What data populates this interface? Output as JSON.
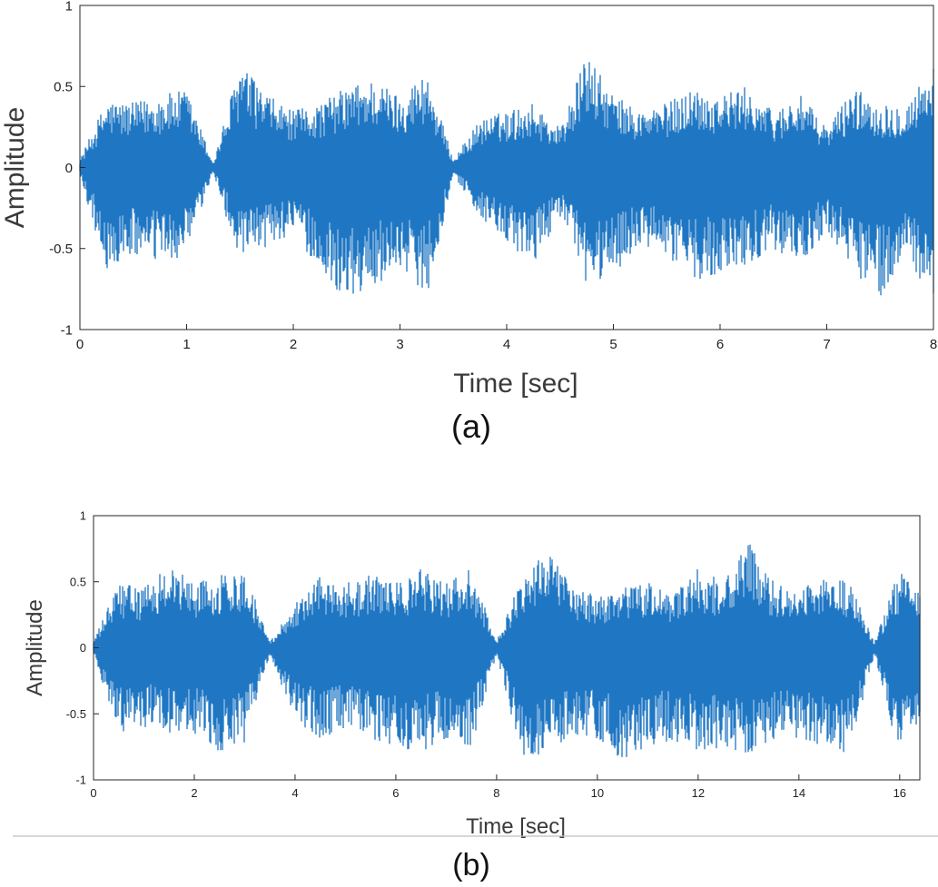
{
  "figure": {
    "panels": [
      {
        "caption": "(a)"
      },
      {
        "caption": "(b)"
      }
    ],
    "colors": {
      "signal": "#1f77c4",
      "axis": "#262626",
      "background": "#ffffff",
      "rule": "#bfbfbf"
    }
  },
  "chart_data": [
    {
      "type": "line",
      "title": "",
      "xlabel": "Time [sec]",
      "ylabel": "Amplitude",
      "xlim": [
        0,
        8
      ],
      "ylim": [
        -1,
        1
      ],
      "xticks": [
        0,
        1,
        2,
        3,
        4,
        5,
        6,
        7,
        8
      ],
      "xtick_labels": [
        "0",
        "1",
        "2",
        "3",
        "4",
        "5",
        "6",
        "7",
        "8"
      ],
      "yticks": [
        -1,
        -0.5,
        0,
        0.5,
        1
      ],
      "ytick_labels": [
        "-1",
        "-0.5",
        "0",
        "0.5",
        "1"
      ],
      "grid": false,
      "series": [
        {
          "color": "#1f77c4",
          "x": [
            0,
            0.25,
            0.5,
            0.75,
            1,
            1.25,
            1.5,
            1.75,
            2,
            2.25,
            2.5,
            2.75,
            3,
            3.25,
            3.5,
            3.75,
            4,
            4.25,
            4.5,
            4.75,
            5,
            5.25,
            5.5,
            5.75,
            6,
            6.25,
            6.5,
            6.75,
            7,
            7.25,
            7.5,
            7.75,
            8
          ],
          "upper": [
            0.05,
            0.42,
            0.4,
            0.45,
            0.48,
            0.03,
            0.65,
            0.45,
            0.35,
            0.4,
            0.5,
            0.55,
            0.45,
            0.6,
            0.05,
            0.3,
            0.35,
            0.4,
            0.25,
            0.7,
            0.45,
            0.35,
            0.4,
            0.5,
            0.45,
            0.5,
            0.35,
            0.45,
            0.25,
            0.5,
            0.4,
            0.4,
            0.65
          ],
          "lower": [
            -0.05,
            -0.65,
            -0.55,
            -0.6,
            -0.55,
            -0.03,
            -0.6,
            -0.5,
            -0.4,
            -0.65,
            -0.82,
            -0.75,
            -0.6,
            -0.8,
            -0.05,
            -0.3,
            -0.5,
            -0.6,
            -0.3,
            -0.75,
            -0.65,
            -0.5,
            -0.55,
            -0.7,
            -0.65,
            -0.6,
            -0.5,
            -0.6,
            -0.4,
            -0.65,
            -0.8,
            -0.55,
            -0.85
          ]
        }
      ]
    },
    {
      "type": "line",
      "title": "",
      "xlabel": "Time [sec]",
      "ylabel": "Amplitude",
      "xlim": [
        0,
        16.4
      ],
      "ylim": [
        -1,
        1
      ],
      "xticks": [
        0,
        2,
        4,
        6,
        8,
        10,
        12,
        14,
        16
      ],
      "xtick_labels": [
        "0",
        "2",
        "4",
        "6",
        "8",
        "10",
        "12",
        "14",
        "16"
      ],
      "yticks": [
        -1,
        -0.5,
        0,
        0.5,
        1
      ],
      "ytick_labels": [
        "-1",
        "-0.5",
        "0",
        "0.5",
        "1"
      ],
      "grid": false,
      "series": [
        {
          "color": "#1f77c4",
          "x": [
            0,
            0.5,
            1,
            1.5,
            2,
            2.5,
            3,
            3.5,
            4,
            4.5,
            5,
            5.5,
            6,
            6.5,
            7,
            7.5,
            8,
            8.5,
            9,
            9.5,
            10,
            10.5,
            11,
            11.5,
            12,
            12.5,
            13,
            13.5,
            14,
            14.5,
            15,
            15.5,
            16,
            16.4
          ],
          "upper": [
            0.05,
            0.5,
            0.45,
            0.65,
            0.5,
            0.55,
            0.6,
            0.05,
            0.35,
            0.55,
            0.5,
            0.55,
            0.5,
            0.6,
            0.5,
            0.6,
            0.05,
            0.55,
            0.8,
            0.45,
            0.4,
            0.45,
            0.5,
            0.4,
            0.6,
            0.5,
            0.8,
            0.5,
            0.45,
            0.55,
            0.5,
            0.05,
            0.6,
            0.4
          ],
          "lower": [
            -0.05,
            -0.65,
            -0.6,
            -0.65,
            -0.65,
            -0.8,
            -0.75,
            -0.05,
            -0.55,
            -0.7,
            -0.6,
            -0.7,
            -0.75,
            -0.8,
            -0.7,
            -0.75,
            -0.05,
            -0.85,
            -0.8,
            -0.7,
            -0.7,
            -0.85,
            -0.75,
            -0.7,
            -0.8,
            -0.75,
            -0.8,
            -0.7,
            -0.7,
            -0.75,
            -0.8,
            -0.05,
            -0.85,
            -0.55
          ]
        }
      ]
    }
  ]
}
